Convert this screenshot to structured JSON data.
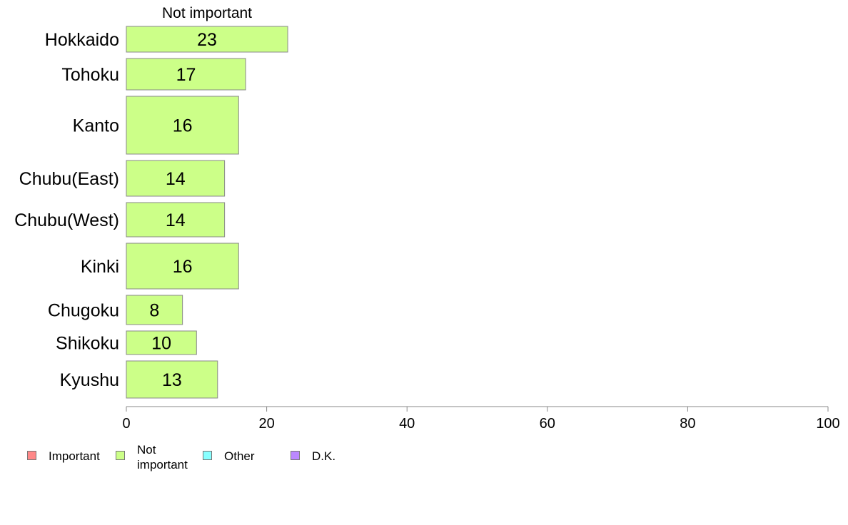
{
  "chart_data": {
    "type": "bar",
    "orientation": "horizontal",
    "title": "Not important",
    "categories": [
      "Hokkaido",
      "Tohoku",
      "Kanto",
      "Chubu(East)",
      "Chubu(West)",
      "Kinki",
      "Chugoku",
      "Shikoku",
      "Kyushu"
    ],
    "series": [
      {
        "name": "Not important",
        "values": [
          23,
          17,
          16,
          14,
          14,
          16,
          8,
          10,
          13
        ],
        "value_labels": [
          "23",
          "17",
          "16",
          "14",
          "14",
          "16",
          "8",
          "10",
          "13"
        ],
        "color": "#ccff88"
      }
    ],
    "xlim": [
      0,
      100
    ],
    "xticks": [
      "0",
      "20",
      "40",
      "60",
      "80",
      "100"
    ],
    "grid": false,
    "legend": {
      "placement": "bottom-left",
      "items": [
        {
          "label": "Important",
          "color": "#ff8888"
        },
        {
          "label": "Not important",
          "line1": "Not",
          "line2": "important",
          "color": "#ccff88"
        },
        {
          "label": "Other",
          "color": "#88ffff"
        },
        {
          "label": "D.K.",
          "color": "#bb88ff"
        }
      ]
    }
  }
}
